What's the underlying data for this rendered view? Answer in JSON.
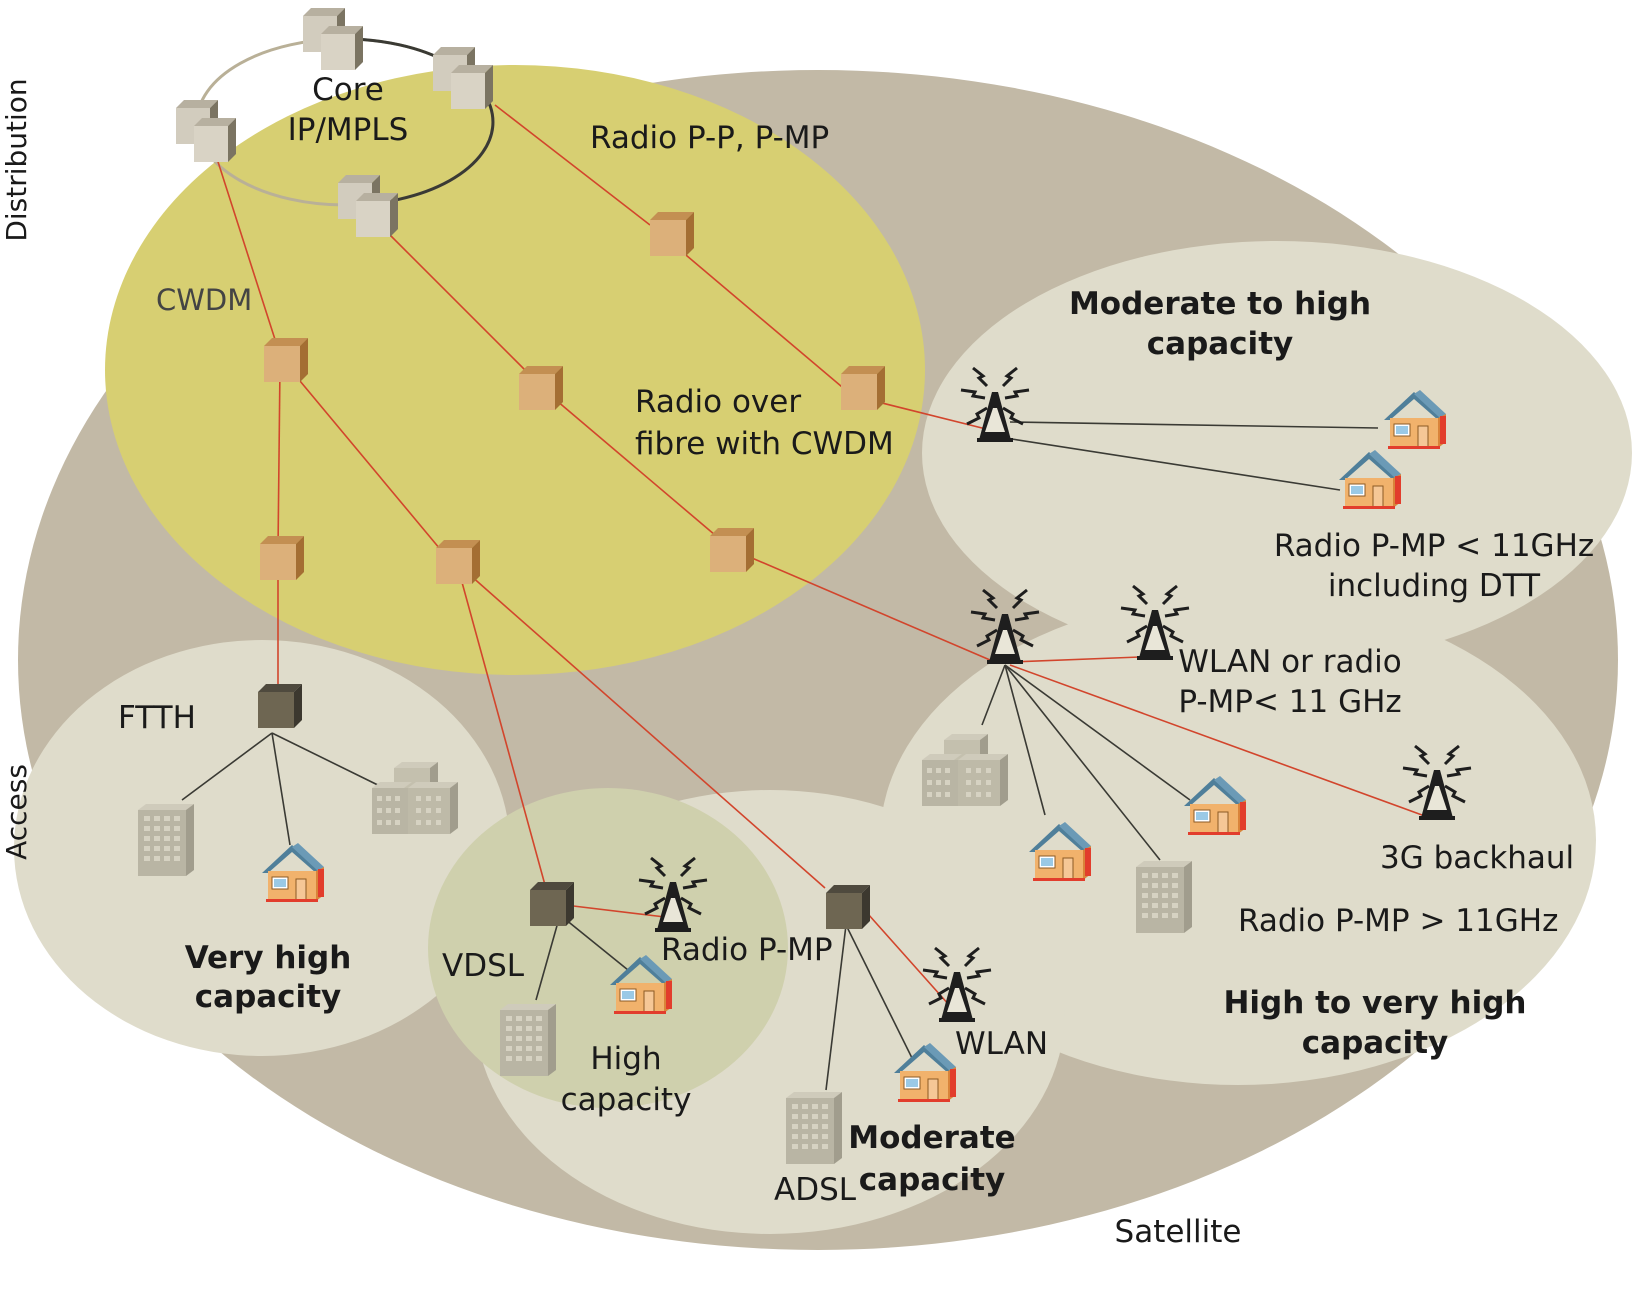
{
  "axis_labels": {
    "distribution": "Distribution",
    "access": "Access"
  },
  "labels": {
    "core": [
      "Core",
      "IP/MPLS"
    ],
    "radio_pp": "Radio P-P, P-MP",
    "cwdm": "CWDM",
    "radio_over_fibre": [
      "Radio over",
      "fibre with CWDM"
    ],
    "moderate_to_high": [
      "Moderate to high",
      "capacity"
    ],
    "radio_pmp_11_dtt": [
      "Radio P-MP < 11GHz",
      "including DTT"
    ],
    "wlan_or_radio": [
      "WLAN or radio",
      "P-MP< 11 GHz"
    ],
    "backhaul_3g": "3G backhaul",
    "radio_pmp_gt11": "Radio P-MP > 11GHz",
    "high_to_very_high": [
      "High to very high",
      "capacity"
    ],
    "ftth": "FTTH",
    "very_high": [
      "Very high",
      "capacity"
    ],
    "vdsl": "VDSL",
    "radio_pmp": "Radio P-MP",
    "high_capacity": [
      "High",
      "capacity"
    ],
    "wlan": "WLAN",
    "moderate_capacity": [
      "Moderate",
      "capacity"
    ],
    "adsl": "ADSL",
    "satellite": "Satellite"
  },
  "colors": {
    "satellite_zone": "#c2b9a6",
    "access_zone": "#dfdccb",
    "distribution_zone": "#d7cf72",
    "high_zone": "#cfd0ad",
    "fibre_link": "#d2452c",
    "copper_link": "#3a3a34",
    "node_light": "#d9ae74",
    "node_dark": "#6e6652",
    "core_router": "#d2ccbe"
  },
  "icons": [
    "core-router-icon",
    "cwdm-node-icon",
    "access-node-icon",
    "radio-tower-icon",
    "house-icon",
    "office-building-icon",
    "apartment-block-icon"
  ]
}
